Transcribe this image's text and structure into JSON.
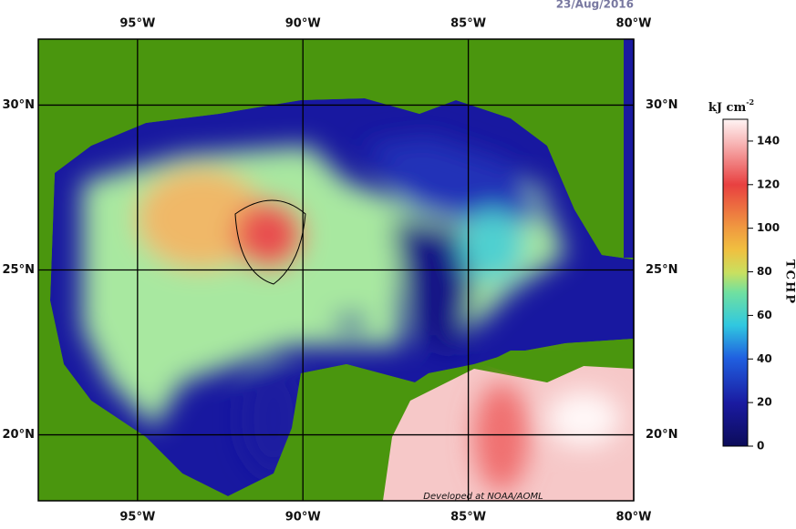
{
  "date": "23/Aug/2016",
  "map": {
    "lon_range": [
      -98,
      -80
    ],
    "lat_range": [
      18,
      32
    ],
    "meridians": [
      {
        "value": -95,
        "label": "95°W"
      },
      {
        "value": -90,
        "label": "90°W"
      },
      {
        "value": -85,
        "label": "85°W"
      },
      {
        "value": -80,
        "label": "80°W"
      }
    ],
    "parallels": [
      {
        "value": 30,
        "label": "30°N"
      },
      {
        "value": 25,
        "label": "25°N"
      },
      {
        "value": 20,
        "label": "20°N"
      }
    ],
    "credit": "Developed at NOAA/AOML"
  },
  "colorbar": {
    "unit": "kJ cm",
    "unit_exponent": "-2",
    "title": "TCHP",
    "range": [
      0,
      150
    ],
    "ticks": [
      0,
      20,
      40,
      60,
      80,
      100,
      120,
      140
    ]
  }
}
